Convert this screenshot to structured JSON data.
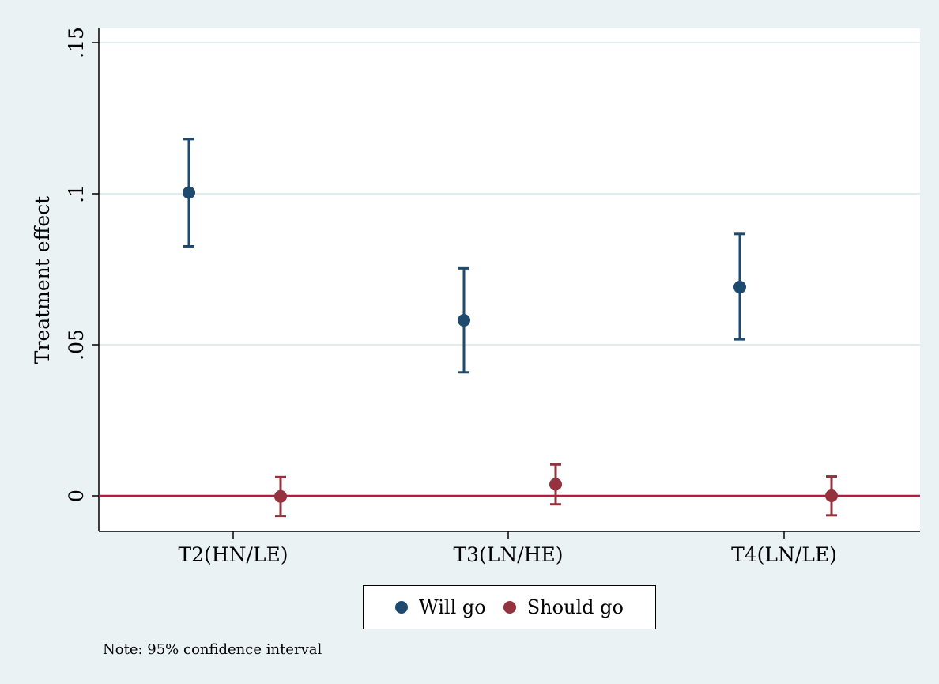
{
  "chart_data": {
    "type": "scatter",
    "subtype": "point-estimate-with-95ci",
    "categories": [
      "T2(HN/LE)",
      "T3(LN/HE)",
      "T4(LN/LE)"
    ],
    "ylabel": "Treatment effect",
    "xlabel": "",
    "ylim": [
      -0.012,
      0.155
    ],
    "yticks": [
      0,
      0.05,
      0.1,
      0.15
    ],
    "ytick_labels": [
      "0",
      ".05",
      ".1",
      ".15"
    ],
    "grid": "horizontal",
    "reference_line": {
      "y": 0,
      "color": "#b01e3c"
    },
    "legend_position": "bottom",
    "series": [
      {
        "name": "Will go",
        "color": "#1f4a70",
        "values": [
          0.1004,
          0.0581,
          0.0691
        ],
        "ci_low": [
          0.0826,
          0.0409,
          0.0518
        ],
        "ci_high": [
          0.1181,
          0.0753,
          0.0867
        ]
      },
      {
        "name": "Should go",
        "color": "#96323d",
        "values": [
          -0.0002,
          0.0038,
          0.0
        ],
        "ci_low": [
          -0.0067,
          -0.0028,
          -0.0065
        ],
        "ci_high": [
          0.0062,
          0.0104,
          0.0064
        ]
      }
    ]
  },
  "note": "Note: 95% confidence interval"
}
